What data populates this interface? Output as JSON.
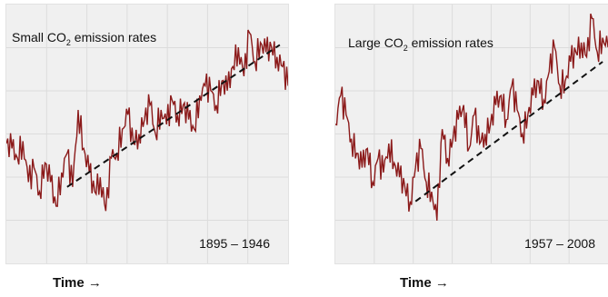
{
  "chart_data": [
    {
      "type": "line",
      "title_prefix": "Small CO",
      "title_sub": "2",
      "title_suffix": " emission rates",
      "period": "1895 – 1946",
      "xlabel": "Time →",
      "x_range": [
        1895,
        1946
      ],
      "grid": true,
      "series": [
        {
          "color": "#8b1a1a",
          "points": [
            [
              1895.0,
              0.46
            ],
            [
              1896.0,
              0.44
            ],
            [
              1897.0,
              0.4
            ],
            [
              1898.0,
              0.47
            ],
            [
              1899.0,
              0.3
            ],
            [
              1900.0,
              0.36
            ],
            [
              1901.0,
              0.26
            ],
            [
              1902.0,
              0.38
            ],
            [
              1903.0,
              0.3
            ],
            [
              1904.0,
              0.2
            ],
            [
              1905.0,
              0.34
            ],
            [
              1906.0,
              0.42
            ],
            [
              1907.0,
              0.28
            ],
            [
              1908.0,
              0.6
            ],
            [
              1909.0,
              0.44
            ],
            [
              1910.0,
              0.34
            ],
            [
              1911.0,
              0.26
            ],
            [
              1912.0,
              0.32
            ],
            [
              1913.0,
              0.18
            ],
            [
              1914.0,
              0.4
            ],
            [
              1915.0,
              0.42
            ],
            [
              1916.0,
              0.52
            ],
            [
              1917.0,
              0.58
            ],
            [
              1918.0,
              0.46
            ],
            [
              1919.0,
              0.5
            ],
            [
              1920.0,
              0.56
            ],
            [
              1921.0,
              0.62
            ],
            [
              1922.0,
              0.5
            ],
            [
              1923.0,
              0.6
            ],
            [
              1924.0,
              0.54
            ],
            [
              1925.0,
              0.64
            ],
            [
              1926.0,
              0.58
            ],
            [
              1927.0,
              0.62
            ],
            [
              1928.0,
              0.56
            ],
            [
              1929.0,
              0.52
            ],
            [
              1930.0,
              0.66
            ],
            [
              1931.0,
              0.7
            ],
            [
              1932.0,
              0.68
            ],
            [
              1933.0,
              0.62
            ],
            [
              1934.0,
              0.72
            ],
            [
              1935.0,
              0.68
            ],
            [
              1936.0,
              0.78
            ],
            [
              1937.0,
              0.86
            ],
            [
              1938.0,
              0.74
            ],
            [
              1939.0,
              0.92
            ],
            [
              1940.0,
              0.8
            ],
            [
              1941.0,
              0.88
            ],
            [
              1942.0,
              0.84
            ],
            [
              1943.0,
              0.86
            ],
            [
              1944.0,
              0.82
            ],
            [
              1945.0,
              0.78
            ],
            [
              1946.0,
              0.7
            ]
          ]
        }
      ],
      "trend": [
        [
          1906.0,
          0.28
        ],
        [
          1944.5,
          0.87
        ]
      ]
    },
    {
      "type": "line",
      "title_prefix": "Large CO",
      "title_sub": "2",
      "title_suffix": " emission rates",
      "period": "1957 – 2008",
      "xlabel": "Time →",
      "x_range": [
        1957,
        2008
      ],
      "grid": true,
      "series": [
        {
          "color": "#8b1a1a",
          "points": [
            [
              1957.0,
              0.54
            ],
            [
              1958.0,
              0.66
            ],
            [
              1959.0,
              0.58
            ],
            [
              1960.0,
              0.48
            ],
            [
              1961.0,
              0.42
            ],
            [
              1962.0,
              0.36
            ],
            [
              1963.0,
              0.44
            ],
            [
              1964.0,
              0.3
            ],
            [
              1965.0,
              0.4
            ],
            [
              1966.0,
              0.34
            ],
            [
              1967.0,
              0.46
            ],
            [
              1968.0,
              0.38
            ],
            [
              1969.0,
              0.32
            ],
            [
              1970.0,
              0.28
            ],
            [
              1971.0,
              0.22
            ],
            [
              1972.0,
              0.36
            ],
            [
              1973.0,
              0.44
            ],
            [
              1974.0,
              0.3
            ],
            [
              1975.0,
              0.26
            ],
            [
              1976.0,
              0.14
            ],
            [
              1977.0,
              0.52
            ],
            [
              1978.0,
              0.4
            ],
            [
              1979.0,
              0.48
            ],
            [
              1980.0,
              0.56
            ],
            [
              1981.0,
              0.62
            ],
            [
              1982.0,
              0.44
            ],
            [
              1983.0,
              0.58
            ],
            [
              1984.0,
              0.46
            ],
            [
              1985.0,
              0.5
            ],
            [
              1986.0,
              0.54
            ],
            [
              1987.0,
              0.62
            ],
            [
              1988.0,
              0.66
            ],
            [
              1989.0,
              0.56
            ],
            [
              1990.0,
              0.7
            ],
            [
              1991.0,
              0.6
            ],
            [
              1992.0,
              0.5
            ],
            [
              1993.0,
              0.58
            ],
            [
              1994.0,
              0.66
            ],
            [
              1995.0,
              0.72
            ],
            [
              1996.0,
              0.64
            ],
            [
              1997.0,
              0.76
            ],
            [
              1998.0,
              0.86
            ],
            [
              1999.0,
              0.7
            ],
            [
              2000.0,
              0.72
            ],
            [
              2001.0,
              0.8
            ],
            [
              2002.0,
              0.84
            ],
            [
              2003.0,
              0.88
            ],
            [
              2004.0,
              0.82
            ],
            [
              2005.0,
              0.98
            ],
            [
              2006.0,
              0.84
            ],
            [
              2007.0,
              0.9
            ],
            [
              2008.0,
              0.86
            ]
          ]
        }
      ],
      "trend": [
        [
          1972.0,
          0.22
        ],
        [
          2007.0,
          0.8
        ]
      ]
    }
  ]
}
